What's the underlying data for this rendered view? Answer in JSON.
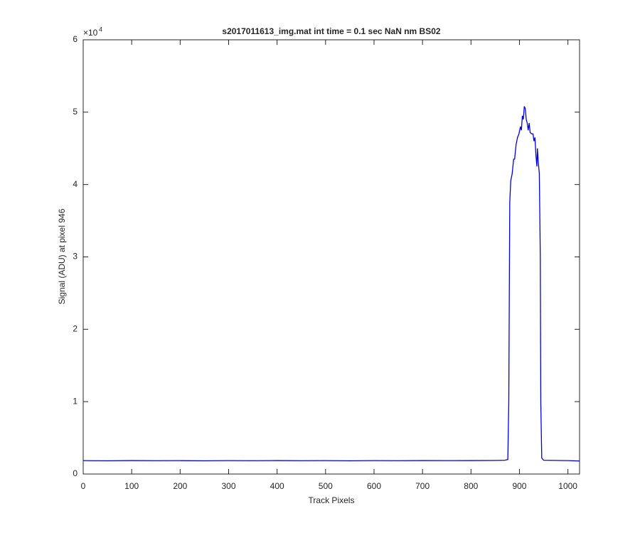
{
  "chart_data": {
    "type": "line",
    "title": "s2017011613_img.mat int time = 0.1 sec  NaN nm BS02",
    "xlabel": "Track Pixels",
    "ylabel": "Signal (ADU) at pixel 946",
    "y_multiplier_base": "×10",
    "y_multiplier_power": "4",
    "xlim": [
      0,
      1024
    ],
    "xticks": [
      0,
      100,
      200,
      300,
      400,
      500,
      600,
      700,
      800,
      900,
      1000
    ],
    "ylim": [
      0,
      6
    ],
    "yticks": [
      0,
      1,
      2,
      3,
      4,
      5,
      6
    ],
    "grid": false,
    "series": [
      {
        "color": "#0000e6",
        "x": [
          0,
          50,
          100,
          150,
          200,
          250,
          300,
          350,
          400,
          450,
          500,
          550,
          600,
          650,
          700,
          750,
          800,
          850,
          870,
          876,
          878,
          880,
          882,
          885,
          888,
          890,
          893,
          896,
          899,
          902,
          904,
          906,
          908,
          910,
          912,
          914,
          916,
          918,
          920,
          922,
          925,
          928,
          930,
          932,
          934,
          936,
          937,
          939,
          941,
          943,
          944,
          946,
          950,
          1000,
          1024
        ],
        "values": [
          0.185,
          0.183,
          0.186,
          0.184,
          0.185,
          0.183,
          0.185,
          0.184,
          0.186,
          0.184,
          0.185,
          0.183,
          0.185,
          0.184,
          0.186,
          0.185,
          0.186,
          0.188,
          0.19,
          0.2,
          1.0,
          3.75,
          4.05,
          4.15,
          4.35,
          4.35,
          4.55,
          4.65,
          4.7,
          4.8,
          4.75,
          4.95,
          4.9,
          5.08,
          5.05,
          4.9,
          4.85,
          4.75,
          4.85,
          4.72,
          4.7,
          4.7,
          4.6,
          4.65,
          4.4,
          4.25,
          4.5,
          4.3,
          4.15,
          3.0,
          1.0,
          0.22,
          0.19,
          0.185,
          0.18
        ]
      }
    ]
  }
}
